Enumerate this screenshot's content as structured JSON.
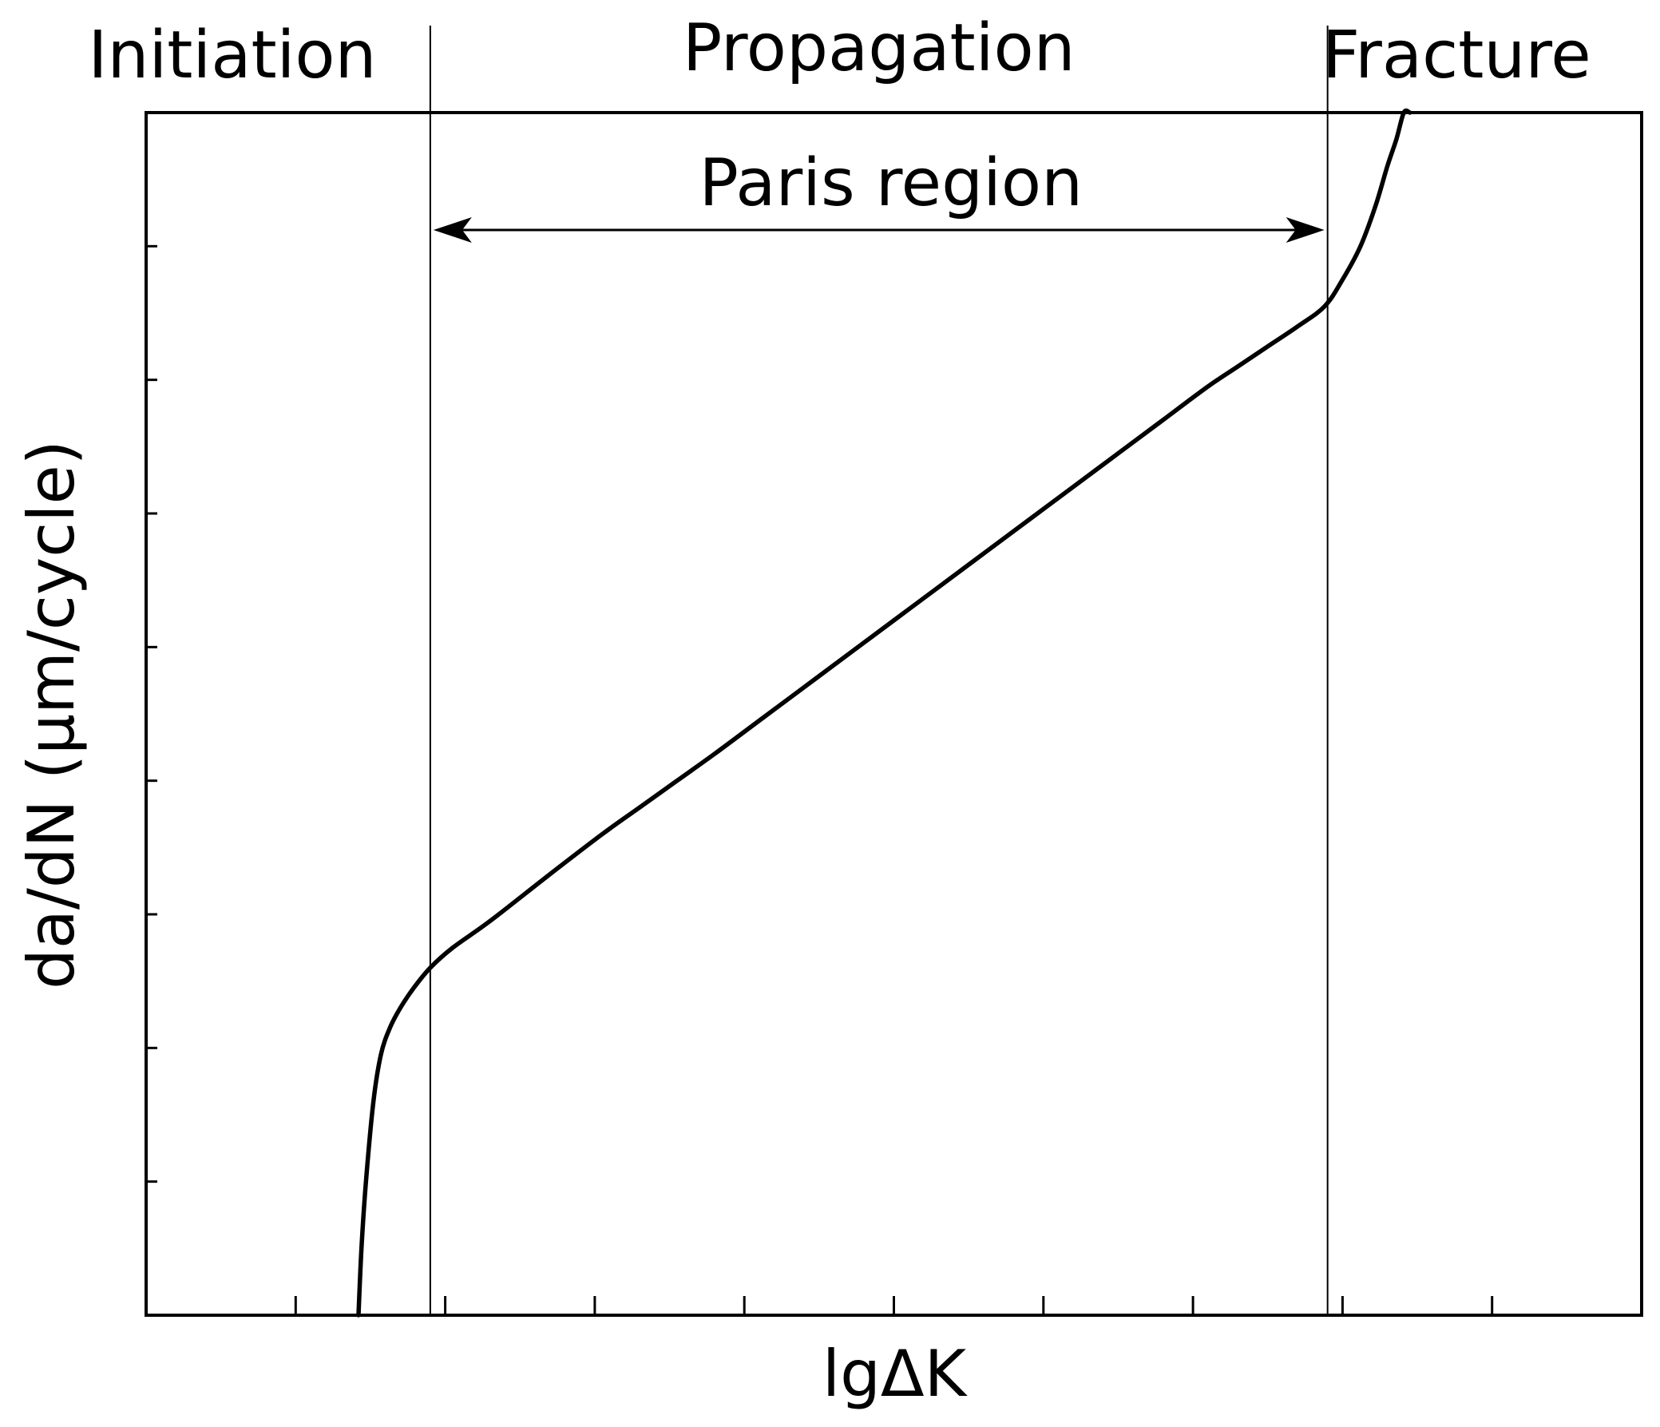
{
  "chart_data": {
    "type": "line",
    "title": "",
    "xlabel": "lgΔK",
    "ylabel": "da/dN (μm/cycle)",
    "xlim": [
      0,
      10
    ],
    "ylim": [
      0,
      9
    ],
    "x_ticks": [
      1,
      2,
      3,
      4,
      5,
      6,
      7,
      8,
      9
    ],
    "y_ticks": [
      1,
      2,
      3,
      4,
      5,
      6,
      7,
      8
    ],
    "x_tick_labels_shown": false,
    "y_tick_labels_shown": false,
    "grid": false,
    "legend": "none",
    "regions": [
      {
        "label": "Initiation",
        "from": 0,
        "to": 1.9
      },
      {
        "label": "Propagation",
        "from": 1.9,
        "to": 7.9
      },
      {
        "label": "Fracture",
        "from": 7.9,
        "to": 10
      }
    ],
    "boundaries": [
      1.9,
      7.9
    ],
    "annotation": {
      "label": "Paris region",
      "from": 1.9,
      "to": 7.9,
      "y": 8.2
    },
    "series": [
      {
        "x": [
          1.42,
          1.44,
          1.47,
          1.52,
          1.57,
          1.63,
          1.7,
          1.79,
          1.9,
          2.05,
          2.3,
          2.7,
          3.05,
          3.3,
          3.55,
          3.8,
          4.1,
          4.4,
          4.7,
          5.0,
          5.3,
          5.6,
          5.9,
          6.2,
          6.5,
          6.8,
          7.1,
          7.3,
          7.5,
          7.7,
          7.88,
          8.0,
          8.12,
          8.22,
          8.3,
          8.36,
          8.41,
          8.45
        ],
        "y": [
          0.0,
          0.5,
          1.0,
          1.6,
          1.95,
          2.15,
          2.3,
          2.45,
          2.6,
          2.75,
          2.95,
          3.3,
          3.6,
          3.8,
          4.0,
          4.2,
          4.45,
          4.7,
          4.95,
          5.2,
          5.45,
          5.7,
          5.95,
          6.2,
          6.45,
          6.7,
          6.95,
          7.1,
          7.25,
          7.4,
          7.55,
          7.75,
          8.0,
          8.3,
          8.6,
          8.8,
          9.0,
          9.05
        ]
      }
    ]
  },
  "colors": {
    "line": "#000000",
    "background": "#ffffff"
  }
}
